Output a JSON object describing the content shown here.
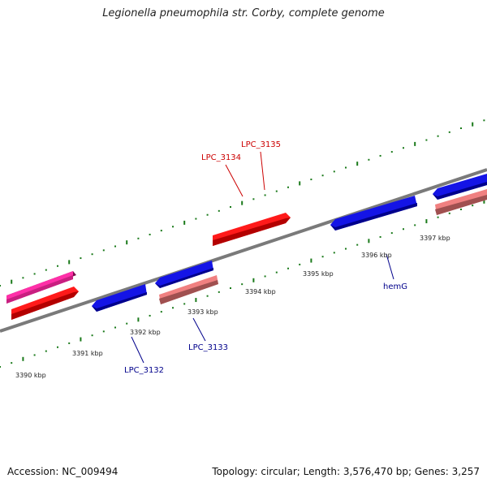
{
  "title": "Legionella pneumophila str. Corby, complete genome",
  "footer": {
    "accession": "Accession: NC_009494",
    "summary": "Topology: circular; Length: 3,576,470 bp; Genes: 3,257"
  },
  "colors": {
    "backbone": "#7a7a7a",
    "tick": "#1a7a1a",
    "forward_label": "#cc0000",
    "reverse_label": "#00008b"
  },
  "ruler_labels": [
    {
      "label": "3390 kbp",
      "kbp": 3390
    },
    {
      "label": "3391 kbp",
      "kbp": 3391
    },
    {
      "label": "3392 kbp",
      "kbp": 3392
    },
    {
      "label": "3393 kbp",
      "kbp": 3393
    },
    {
      "label": "3394 kbp",
      "kbp": 3394
    },
    {
      "label": "3395 kbp",
      "kbp": 3395
    },
    {
      "label": "3396 kbp",
      "kbp": 3396
    },
    {
      "label": "3397 kbp",
      "kbp": 3397
    }
  ],
  "gene_labels": [
    {
      "id": "LPC_3134",
      "label": "LPC_3134",
      "strand": "forward"
    },
    {
      "id": "LPC_3135",
      "label": "LPC_3135",
      "strand": "forward"
    },
    {
      "id": "LPC_3132",
      "label": "LPC_3132",
      "strand": "reverse"
    },
    {
      "id": "LPC_3133",
      "label": "LPC_3133",
      "strand": "reverse"
    },
    {
      "id": "hemG",
      "label": "hemG",
      "strand": "reverse"
    }
  ]
}
